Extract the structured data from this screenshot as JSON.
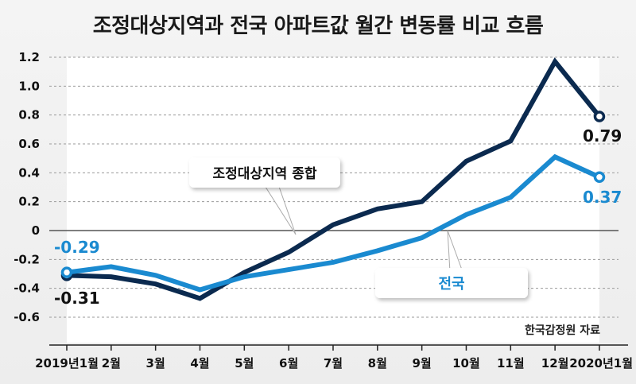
{
  "chart_data": {
    "type": "line",
    "title": "조정대상지역과 전국 아파트값 월간 변동률 비교 흐름",
    "categories": [
      "2019년1월",
      "2월",
      "3월",
      "4월",
      "5월",
      "6월",
      "7월",
      "8월",
      "9월",
      "10월",
      "11월",
      "12월",
      "2020년1월"
    ],
    "ylim": [
      -0.6,
      1.2
    ],
    "yticks": [
      "1.2",
      "1.0",
      "0.8",
      "0.6",
      "0.4",
      "0.2",
      "0",
      "-0.2",
      "-0.4",
      "-0.6"
    ],
    "ytick_values": [
      1.2,
      1.0,
      0.8,
      0.6,
      0.4,
      0.2,
      0,
      -0.2,
      -0.4,
      -0.6
    ],
    "grid": "horizontal-dashed",
    "series": [
      {
        "name": "조정대상지역 종합",
        "color": "#0b2a4f",
        "values": [
          -0.31,
          -0.32,
          -0.37,
          -0.47,
          -0.29,
          -0.15,
          0.04,
          0.15,
          0.2,
          0.48,
          0.62,
          1.17,
          0.79
        ]
      },
      {
        "name": "전국",
        "color": "#1a8ad0",
        "values": [
          -0.29,
          -0.25,
          -0.31,
          -0.41,
          -0.32,
          -0.27,
          -0.22,
          -0.14,
          -0.05,
          0.11,
          0.23,
          0.51,
          0.37
        ]
      }
    ],
    "end_labels": {
      "dark_start": "-0.31",
      "dark_end": "0.79",
      "light_start": "-0.29",
      "light_end": "0.37"
    },
    "source": "한국감정원 자료"
  }
}
